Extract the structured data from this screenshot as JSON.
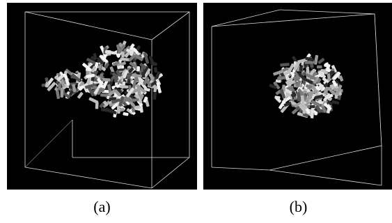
{
  "figure": {
    "panels": [
      {
        "label": "(a)"
      },
      {
        "label": "(b)"
      }
    ]
  },
  "colors": {
    "background": "#000000",
    "box_edges": "#e6e6e6",
    "rods": [
      "#2a2a2a",
      "#555555",
      "#7a7a7a",
      "#9c9c9c",
      "#bfbfbf",
      "#e0e0e0",
      "#f4f4f4"
    ]
  }
}
